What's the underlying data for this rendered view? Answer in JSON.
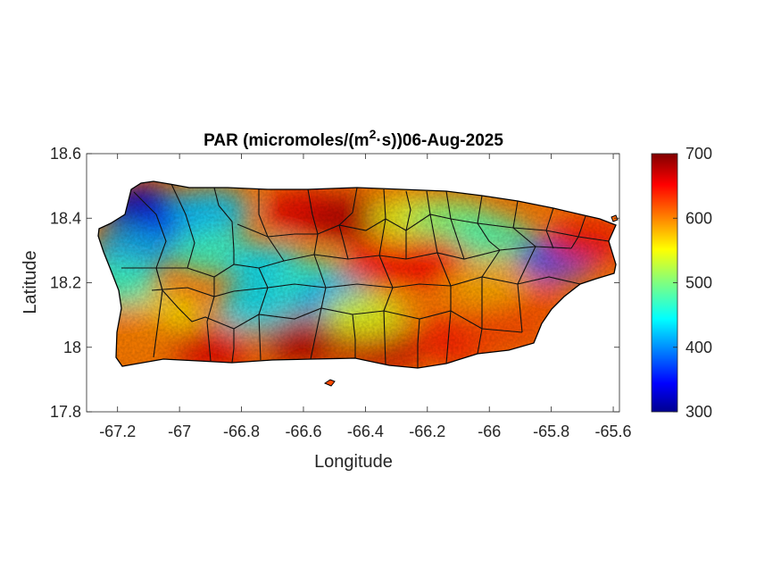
{
  "title": {
    "main": "PAR (micromoles/(m",
    "superscript": "2",
    "rest": "·s))06-Aug-2025"
  },
  "axes": {
    "xlabel": "Longitude",
    "ylabel": "Latitude",
    "xlim": [
      -67.3,
      -65.58
    ],
    "ylim": [
      17.8,
      18.6
    ],
    "xticks": [
      -67.2,
      -67,
      -66.8,
      -66.6,
      -66.4,
      -66.2,
      -66,
      -65.8,
      -65.6
    ],
    "xtick_labels": [
      "-67.2",
      "-67",
      "-66.8",
      "-66.6",
      "-66.4",
      "-66.2",
      "-66",
      "-65.8",
      "-65.6"
    ],
    "yticks": [
      17.8,
      18,
      18.2,
      18.4,
      18.6
    ],
    "ytick_labels": [
      "17.8",
      "18",
      "18.2",
      "18.4",
      "18.6"
    ]
  },
  "colorbar": {
    "min": 300,
    "max": 700,
    "colormap": "jet",
    "ticks": [
      300,
      400,
      500,
      600,
      700
    ],
    "tick_labels": [
      "300",
      "400",
      "500",
      "600",
      "700"
    ]
  },
  "map_data": {
    "region": "Puerto Rico",
    "variable": "PAR",
    "units": "micromoles/(m2·s)",
    "date": "06-Aug-2025",
    "field_samples": [
      {
        "lon": -67.12,
        "lat": 18.43,
        "value": 330
      },
      {
        "lon": -67.0,
        "lat": 18.38,
        "value": 360
      },
      {
        "lon": -66.9,
        "lat": 18.42,
        "value": 430
      },
      {
        "lon": -67.15,
        "lat": 18.3,
        "value": 420
      },
      {
        "lon": -66.9,
        "lat": 18.3,
        "value": 470
      },
      {
        "lon": -66.72,
        "lat": 18.25,
        "value": 440
      },
      {
        "lon": -66.55,
        "lat": 18.2,
        "value": 470
      },
      {
        "lon": -66.6,
        "lat": 18.42,
        "value": 660
      },
      {
        "lon": -66.45,
        "lat": 18.4,
        "value": 680
      },
      {
        "lon": -66.25,
        "lat": 18.4,
        "value": 540
      },
      {
        "lon": -66.12,
        "lat": 18.39,
        "value": 500
      },
      {
        "lon": -66.0,
        "lat": 18.34,
        "value": 480
      },
      {
        "lon": -65.78,
        "lat": 18.28,
        "value": 380
      },
      {
        "lon": -65.68,
        "lat": 18.33,
        "value": 640
      },
      {
        "lon": -65.9,
        "lat": 18.15,
        "value": 620
      },
      {
        "lon": -66.2,
        "lat": 18.27,
        "value": 650
      },
      {
        "lon": -66.35,
        "lat": 18.25,
        "value": 640
      },
      {
        "lon": -66.5,
        "lat": 18.15,
        "value": 420
      },
      {
        "lon": -66.75,
        "lat": 18.12,
        "value": 440
      },
      {
        "lon": -67.05,
        "lat": 18.1,
        "value": 560
      },
      {
        "lon": -67.15,
        "lat": 18.05,
        "value": 600
      },
      {
        "lon": -66.9,
        "lat": 18.0,
        "value": 660
      },
      {
        "lon": -66.6,
        "lat": 18.02,
        "value": 680
      },
      {
        "lon": -66.35,
        "lat": 18.0,
        "value": 670
      },
      {
        "lon": -66.1,
        "lat": 18.02,
        "value": 640
      },
      {
        "lon": -65.95,
        "lat": 18.05,
        "value": 620
      },
      {
        "lon": -67.2,
        "lat": 18.2,
        "value": 470
      },
      {
        "lon": -66.4,
        "lat": 18.1,
        "value": 540
      },
      {
        "lon": -66.0,
        "lat": 18.2,
        "value": 580
      }
    ]
  }
}
